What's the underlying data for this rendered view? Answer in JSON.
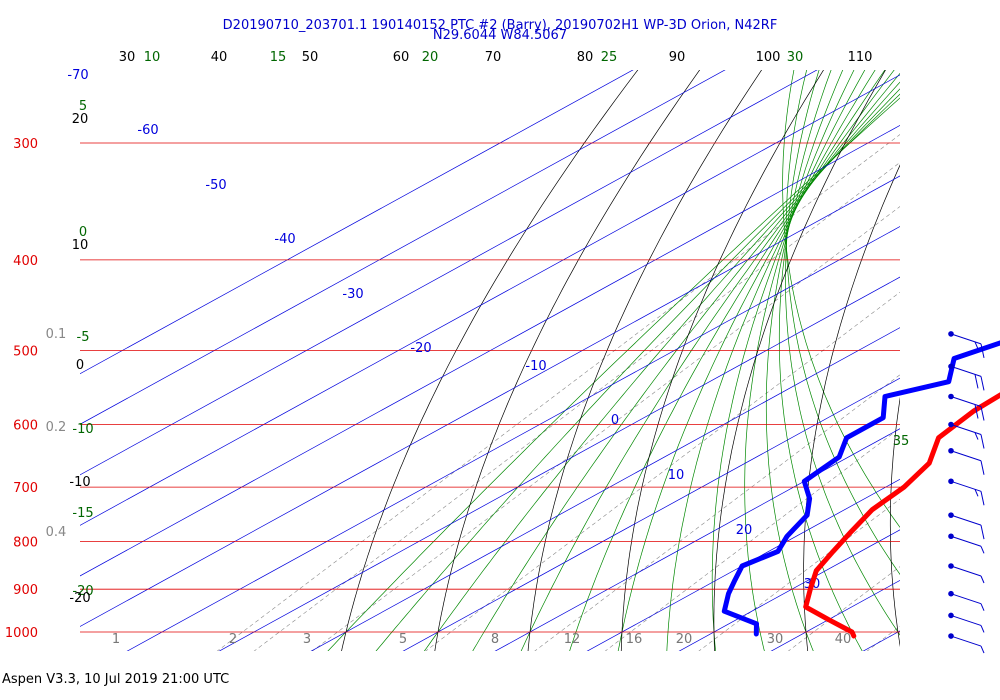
{
  "header": {
    "title_line1": "D20190710_203701.1 190140152 PTC #2 (Barry), 20190702H1 WP-3D Orion, N42RF",
    "title_line2": "N29.6044 W84.5067"
  },
  "footer": {
    "text": "Aspen V3.3, 10 Jul 2019  21:00 UTC"
  },
  "colors": {
    "isobar": "#e00000",
    "isotherm": "#0000dd",
    "dry_adiabat": "#000000",
    "moist_adiabat": "#008800",
    "mixing_ratio": "#888888",
    "temperature": "#ff0000",
    "dewpoint": "#0000ff",
    "wind_barb": "#0000cc"
  },
  "chart_data": {
    "type": "skew-t",
    "pressure_axis": {
      "unit": "hPa",
      "labels": [
        "300",
        "400",
        "500",
        "600",
        "700",
        "800",
        "900",
        "1000"
      ],
      "values": [
        300,
        400,
        500,
        600,
        700,
        800,
        900,
        1000
      ],
      "range": [
        250,
        1050
      ]
    },
    "top_ticks_black": [
      "30",
      "40",
      "50",
      "60",
      "70",
      "80",
      "90",
      "100",
      "110"
    ],
    "top_ticks_green": [
      "10",
      "15",
      "20",
      "25",
      "30"
    ],
    "isotherm_labels": [
      "-70",
      "-60",
      "-50",
      "-40",
      "-30",
      "-20",
      "-10",
      "0",
      "10",
      "20",
      "30"
    ],
    "mixing_ratio_labels": [
      "1",
      "2",
      "3",
      "5",
      "8",
      "12",
      "16",
      "20",
      "30",
      "40"
    ],
    "left_green_labels": [
      "5",
      "0",
      "-5",
      "-10",
      "-15",
      "-20"
    ],
    "left_black_labels": [
      "20",
      "10",
      "0",
      "-10",
      "-20"
    ],
    "left_gray_labels": [
      "0.1",
      "0.2",
      "0.4"
    ],
    "right_green_labels": [
      "35"
    ],
    "temperature_profile": [
      [
        480,
        -7
      ],
      [
        500,
        -7
      ],
      [
        540,
        -6
      ],
      [
        580,
        -5.5
      ],
      [
        620,
        -4
      ],
      [
        660,
        0
      ],
      [
        700,
        2
      ],
      [
        740,
        3
      ],
      [
        780,
        5
      ],
      [
        820,
        7
      ],
      [
        860,
        9
      ],
      [
        900,
        12
      ],
      [
        940,
        15
      ],
      [
        970,
        20
      ],
      [
        1000,
        25
      ],
      [
        1010,
        26
      ]
    ],
    "dewpoint_profile": [
      [
        490,
        -16
      ],
      [
        510,
        -18
      ],
      [
        540,
        -14
      ],
      [
        560,
        -18
      ],
      [
        590,
        -14
      ],
      [
        620,
        -14
      ],
      [
        650,
        -11
      ],
      [
        690,
        -10
      ],
      [
        720,
        -6
      ],
      [
        750,
        -3
      ],
      [
        790,
        -1
      ],
      [
        820,
        1
      ],
      [
        850,
        0
      ],
      [
        880,
        2
      ],
      [
        910,
        4
      ],
      [
        950,
        7
      ],
      [
        980,
        13
      ],
      [
        1005,
        15
      ]
    ],
    "wind_barbs": [
      {
        "pressure": 480,
        "barbs": [
          10,
          5
        ]
      },
      {
        "pressure": 520,
        "barbs": [
          10,
          10
        ]
      },
      {
        "pressure": 560,
        "barbs": [
          10,
          10
        ]
      },
      {
        "pressure": 600,
        "barbs": [
          10,
          5
        ]
      },
      {
        "pressure": 640,
        "barbs": [
          10
        ]
      },
      {
        "pressure": 690,
        "barbs": [
          10,
          5
        ]
      },
      {
        "pressure": 750,
        "barbs": [
          10
        ]
      },
      {
        "pressure": 790,
        "barbs": [
          5
        ]
      },
      {
        "pressure": 850,
        "barbs": [
          5
        ]
      },
      {
        "pressure": 910,
        "barbs": [
          5
        ]
      },
      {
        "pressure": 960,
        "barbs": [
          5
        ]
      },
      {
        "pressure": 1010,
        "barbs": [
          5
        ]
      }
    ]
  }
}
